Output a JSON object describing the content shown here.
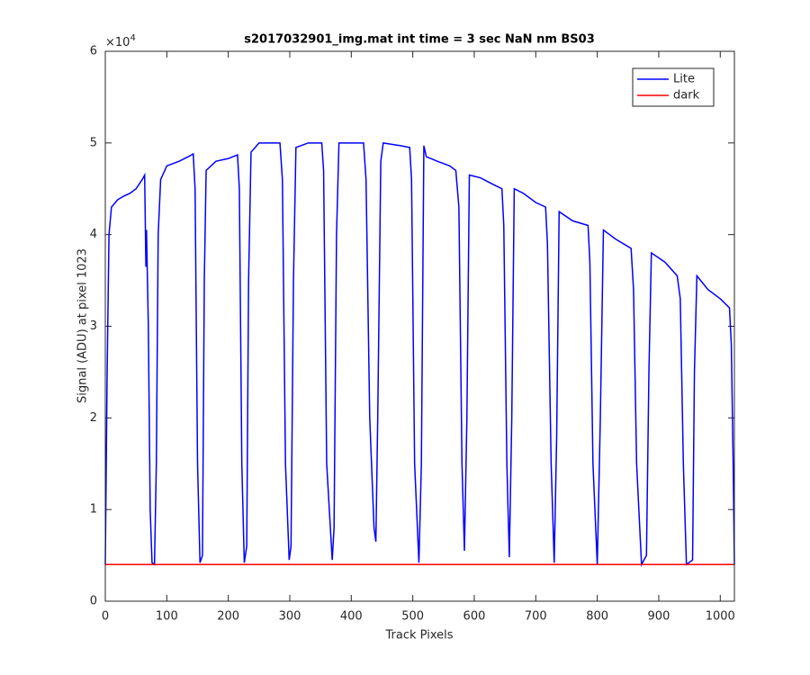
{
  "chart_data": {
    "type": "line",
    "title": "s2017032901_img.mat int time = 3 sec  NaN nm BS03",
    "x_label": "Track Pixels",
    "y_label": "Signal (ADU) at pixel 1023",
    "y_exponent_base": "×10",
    "y_exponent": "4",
    "xlim": [
      0,
      1023
    ],
    "ylim": [
      0,
      6
    ],
    "xticks": [
      0,
      100,
      200,
      300,
      400,
      500,
      600,
      700,
      800,
      900,
      1000
    ],
    "yticks": [
      0,
      1,
      2,
      3,
      4,
      5,
      6
    ],
    "legend": "top-right",
    "series": [
      {
        "name": "Lite",
        "color": "#0000ff",
        "x": [
          0,
          3,
          6,
          10,
          20,
          30,
          40,
          50,
          60,
          64,
          66,
          67,
          68,
          70,
          73,
          76,
          80,
          83,
          86,
          90,
          100,
          120,
          135,
          143,
          146,
          150,
          154,
          158,
          161,
          164,
          180,
          200,
          215,
          218,
          222,
          226,
          230,
          233,
          237,
          250,
          270,
          284,
          288,
          293,
          299,
          302,
          306,
          310,
          330,
          352,
          355,
          360,
          369,
          372,
          376,
          380,
          400,
          420,
          424,
          430,
          437,
          440,
          443,
          448,
          452,
          480,
          495,
          498,
          503,
          510,
          514,
          518,
          522,
          540,
          560,
          570,
          575,
          580,
          584,
          588,
          592,
          610,
          630,
          645,
          648,
          653,
          657,
          661,
          665,
          680,
          700,
          716,
          719,
          725,
          730,
          734,
          738,
          760,
          785,
          788,
          793,
          800,
          805,
          810,
          830,
          855,
          859,
          864,
          872,
          880,
          884,
          888,
          910,
          930,
          935,
          940,
          945,
          955,
          958,
          962,
          980,
          1000,
          1015,
          1018,
          1021,
          1023
        ],
        "values": [
          0.4,
          2.5,
          4.0,
          4.3,
          4.38,
          4.42,
          4.45,
          4.5,
          4.6,
          4.65,
          3.65,
          4.05,
          3.7,
          3.0,
          1.0,
          0.42,
          0.4,
          1.5,
          4.0,
          4.6,
          4.75,
          4.8,
          4.85,
          4.88,
          4.5,
          1.5,
          0.42,
          0.5,
          3.5,
          4.7,
          4.8,
          4.83,
          4.87,
          4.5,
          1.5,
          0.42,
          0.6,
          3.5,
          4.9,
          5.0,
          5.0,
          5.0,
          4.6,
          1.5,
          0.45,
          0.6,
          3.5,
          4.95,
          5.0,
          5.0,
          4.7,
          1.5,
          0.45,
          0.8,
          4.0,
          5.0,
          5.0,
          5.0,
          4.6,
          2.0,
          0.8,
          0.65,
          2.0,
          4.8,
          5.0,
          4.97,
          4.95,
          4.6,
          1.5,
          0.42,
          1.5,
          4.97,
          4.85,
          4.8,
          4.75,
          4.7,
          4.3,
          1.5,
          0.55,
          2.0,
          4.65,
          4.62,
          4.55,
          4.5,
          4.1,
          1.5,
          0.48,
          2.0,
          4.5,
          4.45,
          4.35,
          4.3,
          3.9,
          1.5,
          0.42,
          1.8,
          4.25,
          4.15,
          4.1,
          3.7,
          1.5,
          0.4,
          2.0,
          4.05,
          3.95,
          3.85,
          3.4,
          1.5,
          0.4,
          0.5,
          2.5,
          3.8,
          3.7,
          3.55,
          3.3,
          1.5,
          0.4,
          0.45,
          2.5,
          3.55,
          3.4,
          3.3,
          3.2,
          2.8,
          1.5,
          0.4
        ]
      },
      {
        "name": "dark",
        "color": "#ff0000",
        "x": [
          0,
          1023
        ],
        "values": [
          0.4,
          0.4
        ]
      }
    ]
  }
}
